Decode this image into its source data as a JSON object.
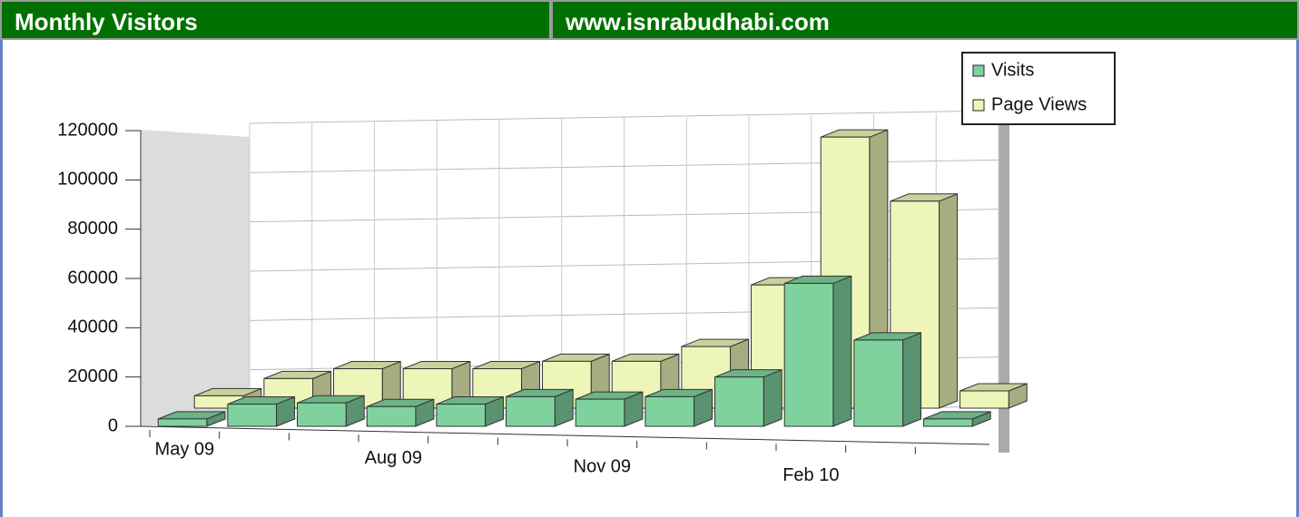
{
  "header": {
    "title": "Monthly Visitors",
    "site": "www.isnrabudhabi.com"
  },
  "chart_data": {
    "type": "bar3d",
    "categories": [
      "May 09",
      null,
      null,
      "Aug 09",
      null,
      null,
      "Nov 09",
      null,
      null,
      "Feb 10",
      null,
      null
    ],
    "series": [
      {
        "name": "Visits",
        "color": "#7fd29e",
        "values": [
          3000,
          9000,
          9500,
          8000,
          9000,
          12000,
          11000,
          12000,
          20000,
          58000,
          35000,
          3000
        ]
      },
      {
        "name": "Page Views",
        "color": "#eef5b8",
        "values": [
          5000,
          12000,
          16000,
          16000,
          16000,
          19000,
          19000,
          25000,
          50000,
          110000,
          84000,
          7000
        ]
      }
    ],
    "ylim": [
      0,
      120000
    ],
    "yticks": [
      0,
      20000,
      40000,
      60000,
      80000,
      100000,
      120000
    ],
    "grid": true,
    "legend": "top-right"
  }
}
